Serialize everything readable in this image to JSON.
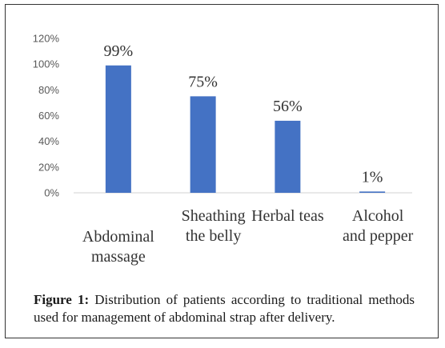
{
  "chart_data": {
    "type": "bar",
    "categories": [
      [
        "Abdominal",
        "massage"
      ],
      [
        "Sheathing",
        "the belly"
      ],
      [
        "Herbal teas"
      ],
      [
        "Alcohol",
        "and pepper"
      ]
    ],
    "values": [
      99,
      75,
      56,
      1
    ],
    "data_labels": [
      "99%",
      "75%",
      "56%",
      "1%"
    ],
    "yticks": [
      "0%",
      "20%",
      "40%",
      "60%",
      "80%",
      "100%",
      "120%"
    ],
    "ylim": [
      0,
      120
    ],
    "grid": false,
    "legend": "none",
    "bar_color": "#4472C4"
  },
  "caption": {
    "label": "Figure 1:",
    "text": "Distribution of patients according to traditional methods used for management of abdominal strap after delivery."
  }
}
